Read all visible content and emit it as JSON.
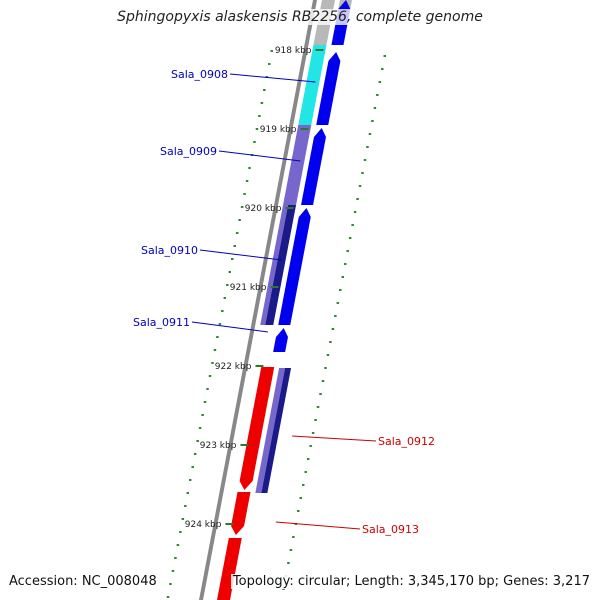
{
  "title": "Sphingopyxis alaskensis RB2256, complete genome",
  "footer": {
    "accession": "Accession: NC_008048",
    "topology": "Topology: circular; Length: 3,345,170 bp; Genes: 3,217"
  },
  "ticks": [
    "918 kbp",
    "919 kbp",
    "920 kbp",
    "921 kbp",
    "922 kbp",
    "923 kbp",
    "924 kbp"
  ],
  "gene_labels": [
    {
      "text": "Sala_0908",
      "color": "#0000bb"
    },
    {
      "text": "Sala_0909",
      "color": "#0000bb"
    },
    {
      "text": "Sala_0910",
      "color": "#0000bb"
    },
    {
      "text": "Sala_0911",
      "color": "#0000bb"
    },
    {
      "text": "Sala_0912",
      "color": "#cc0000"
    },
    {
      "text": "Sala_0913",
      "color": "#cc0000"
    }
  ],
  "colors": {
    "forward_strand": "#0000ee",
    "reverse_strand": "#ee0000",
    "cog_cyan": "#22e5e5",
    "cog_purple": "#7766cc",
    "cog_navy": "#1a1a88",
    "gray": "#b8b8b8",
    "backbone": "#888888",
    "gc_ticks": "#338833"
  }
}
